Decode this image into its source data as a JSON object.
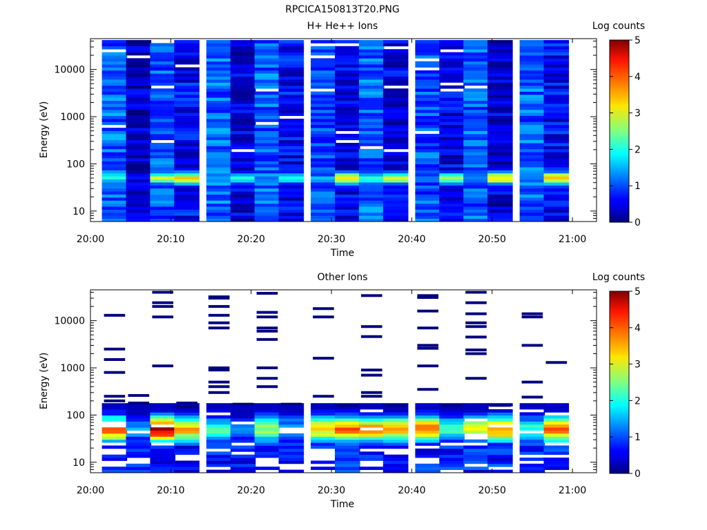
{
  "figure_title": "RPCICA150813T20.PNG",
  "colorbar": {
    "label": "Log counts",
    "range": [
      0,
      5
    ],
    "ticks": [
      "0",
      "1",
      "2",
      "3",
      "4",
      "5"
    ],
    "colormap": "jet"
  },
  "chart_data": [
    {
      "type": "heatmap",
      "title": "H+ He++ Ions",
      "xlabel": "Time",
      "ylabel": "Energy (eV)",
      "yscale": "log",
      "ylim": [
        6,
        45000
      ],
      "xlim": [
        "20:00",
        "21:03"
      ],
      "x_ticks": [
        "20:00",
        "20:10",
        "20:20",
        "20:30",
        "20:40",
        "20:50",
        "21:00"
      ],
      "y_ticks": [
        "10",
        "100",
        "1000",
        "10000"
      ],
      "time_bins": [
        "20:03",
        "20:06",
        "20:09",
        "20:12",
        "20:16",
        "20:19",
        "20:22",
        "20:25",
        "20:29",
        "20:32",
        "20:35",
        "20:38",
        "20:42",
        "20:45",
        "20:48",
        "20:51",
        "20:55",
        "20:58"
      ],
      "energy_range_eV": [
        6,
        42000
      ],
      "value_range_log_counts": [
        0,
        3.5
      ],
      "peak_energy_eV": 50,
      "peak_log_counts": [
        2.0,
        0.6,
        2.8,
        3.2,
        1.6,
        2.0,
        1.2,
        2.2,
        1.4,
        3.4,
        2.2,
        2.8,
        1.2,
        2.6,
        1.2,
        3.3,
        1.2,
        3.5
      ],
      "background_log_counts": [
        1.1,
        0.3,
        1.0,
        0.6,
        1.1,
        0.4,
        1.1,
        0.6,
        1.0,
        0.5,
        1.1,
        0.5,
        1.0,
        0.5,
        1.1,
        0.4,
        1.1,
        0.6
      ]
    },
    {
      "type": "heatmap",
      "title": "Other Ions",
      "xlabel": "Time",
      "ylabel": "Energy (eV)",
      "yscale": "log",
      "ylim": [
        6,
        45000
      ],
      "xlim": [
        "20:00",
        "21:03"
      ],
      "x_ticks": [
        "20:00",
        "20:10",
        "20:20",
        "20:30",
        "20:40",
        "20:50",
        "21:00"
      ],
      "y_ticks": [
        "10",
        "100",
        "1000",
        "10000"
      ],
      "time_bins": [
        "20:03",
        "20:06",
        "20:09",
        "20:12",
        "20:16",
        "20:19",
        "20:22",
        "20:25",
        "20:29",
        "20:32",
        "20:35",
        "20:38",
        "20:42",
        "20:45",
        "20:48",
        "20:51",
        "20:55",
        "20:58"
      ],
      "energy_range_eV": [
        6,
        42000
      ],
      "value_range_log_counts": [
        0,
        4.6
      ],
      "band_energy_eV": [
        30,
        180
      ],
      "peak_energy_eV": 50,
      "peak_log_counts": [
        3.8,
        1.4,
        4.6,
        3.4,
        2.2,
        1.2,
        2.6,
        1.6,
        3.2,
        3.9,
        3.6,
        3.4,
        3.8,
        2.2,
        3.0,
        3.8,
        2.2,
        3.8
      ],
      "sparse_lines_eV": [
        [
          13000,
          2500,
          1500,
          800,
          250,
          200
        ],
        [
          260,
          180
        ],
        [
          40000,
          24000,
          20000,
          12000,
          1100
        ],
        [
          180,
          150
        ],
        [
          32000,
          30000,
          20000,
          13000,
          9000,
          7000,
          1000,
          900,
          500,
          400,
          300
        ],
        [
          170
        ],
        [
          38000,
          15000,
          12000,
          7000,
          6000,
          4000,
          1000,
          600,
          400
        ],
        [
          170
        ],
        [
          18000,
          12000,
          1600,
          250
        ],
        [
          160
        ],
        [
          34000,
          7500,
          4600,
          900,
          700,
          300,
          250
        ],
        [
          160
        ],
        [
          34000,
          31000,
          16000,
          7000,
          3000,
          2600,
          1100,
          350
        ],
        [
          160
        ],
        [
          40000,
          24000,
          14000,
          9000,
          7500,
          4500,
          2400,
          2000,
          600
        ],
        [
          160
        ],
        [
          14000,
          12000,
          3000,
          500,
          240
        ],
        [
          1300
        ]
      ]
    }
  ]
}
